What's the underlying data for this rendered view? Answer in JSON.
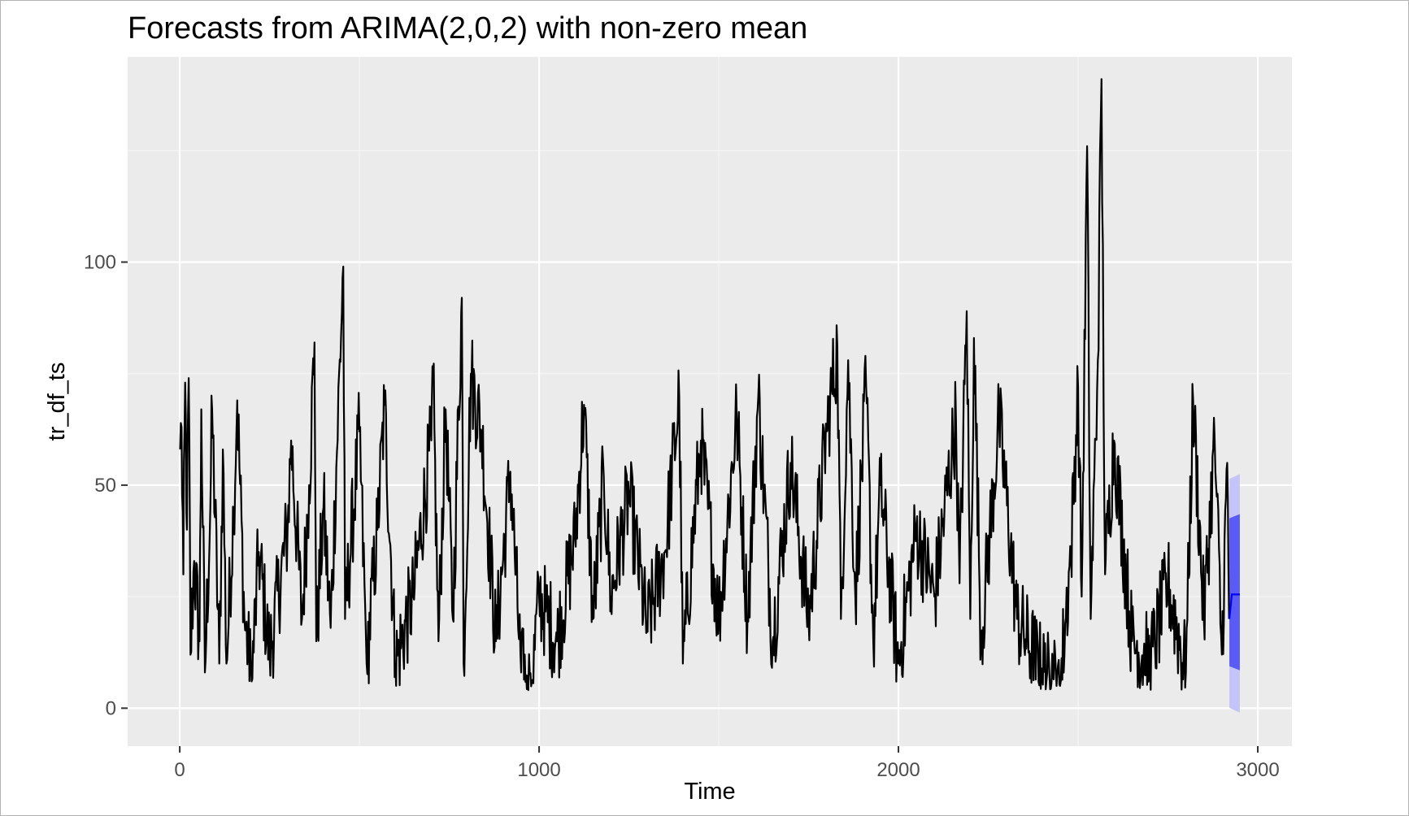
{
  "chart_data": {
    "type": "line",
    "title": "Forecasts from ARIMA(2,0,2) with non-zero mean",
    "xlabel": "Time",
    "ylabel": "tr_df_ts",
    "xlim": [
      -145,
      3095
    ],
    "ylim": [
      -8.5,
      146
    ],
    "x_ticks": [
      0,
      1000,
      2000,
      3000
    ],
    "x_tick_labels": [
      "0",
      "1000",
      "2000",
      "3000"
    ],
    "y_ticks": [
      0,
      50,
      100
    ],
    "y_tick_labels": [
      "0",
      "50",
      "100"
    ],
    "grid": true,
    "legend": "none",
    "series": [
      {
        "values_note_free": true,
        "x_start": 1,
        "x_end": 2920,
        "color": "#000000",
        "anchors": [
          [
            1,
            58
          ],
          [
            5,
            63
          ],
          [
            10,
            30
          ],
          [
            15,
            73
          ],
          [
            20,
            40
          ],
          [
            25,
            74
          ],
          [
            30,
            12
          ],
          [
            40,
            33
          ],
          [
            55,
            15
          ],
          [
            60,
            67
          ],
          [
            70,
            8
          ],
          [
            85,
            45
          ],
          [
            90,
            67
          ],
          [
            110,
            10
          ],
          [
            120,
            58
          ],
          [
            130,
            10
          ],
          [
            150,
            45
          ],
          [
            160,
            69
          ],
          [
            180,
            20
          ],
          [
            200,
            6
          ],
          [
            220,
            35
          ],
          [
            250,
            12
          ],
          [
            300,
            40
          ],
          [
            310,
            60
          ],
          [
            340,
            20
          ],
          [
            360,
            50
          ],
          [
            375,
            82
          ],
          [
            380,
            15
          ],
          [
            400,
            45
          ],
          [
            420,
            18
          ],
          [
            455,
            99
          ],
          [
            460,
            20
          ],
          [
            500,
            62
          ],
          [
            520,
            10
          ],
          [
            550,
            40
          ],
          [
            570,
            68
          ],
          [
            600,
            10
          ],
          [
            650,
            25
          ],
          [
            700,
            60
          ],
          [
            705,
            74
          ],
          [
            720,
            15
          ],
          [
            740,
            67
          ],
          [
            760,
            20
          ],
          [
            785,
            92
          ],
          [
            790,
            10
          ],
          [
            810,
            75
          ],
          [
            840,
            62
          ],
          [
            880,
            15
          ],
          [
            920,
            53
          ],
          [
            950,
            8
          ],
          [
            980,
            6
          ],
          [
            1000,
            25
          ],
          [
            1050,
            15
          ],
          [
            1100,
            38
          ],
          [
            1125,
            68
          ],
          [
            1150,
            20
          ],
          [
            1180,
            52
          ],
          [
            1200,
            25
          ],
          [
            1250,
            48
          ],
          [
            1300,
            18
          ],
          [
            1350,
            35
          ],
          [
            1390,
            70
          ],
          [
            1400,
            10
          ],
          [
            1450,
            60
          ],
          [
            1500,
            20
          ],
          [
            1550,
            66
          ],
          [
            1580,
            20
          ],
          [
            1610,
            70
          ],
          [
            1650,
            15
          ],
          [
            1700,
            55
          ],
          [
            1750,
            20
          ],
          [
            1800,
            62
          ],
          [
            1830,
            81
          ],
          [
            1840,
            20
          ],
          [
            1860,
            78
          ],
          [
            1880,
            25
          ],
          [
            1910,
            72
          ],
          [
            1930,
            15
          ],
          [
            1950,
            50
          ],
          [
            2000,
            10
          ],
          [
            2050,
            40
          ],
          [
            2100,
            25
          ],
          [
            2160,
            65
          ],
          [
            2170,
            28
          ],
          [
            2190,
            89
          ],
          [
            2200,
            20
          ],
          [
            2210,
            83
          ],
          [
            2230,
            15
          ],
          [
            2280,
            65
          ],
          [
            2330,
            20
          ],
          [
            2400,
            8
          ],
          [
            2450,
            5
          ],
          [
            2480,
            35
          ],
          [
            2500,
            72
          ],
          [
            2510,
            25
          ],
          [
            2525,
            126
          ],
          [
            2535,
            20
          ],
          [
            2555,
            78
          ],
          [
            2565,
            141
          ],
          [
            2575,
            30
          ],
          [
            2600,
            60
          ],
          [
            2650,
            15
          ],
          [
            2700,
            10
          ],
          [
            2750,
            28
          ],
          [
            2800,
            8
          ],
          [
            2820,
            69
          ],
          [
            2850,
            20
          ],
          [
            2880,
            60
          ],
          [
            2900,
            12
          ],
          [
            2915,
            55
          ],
          [
            2920,
            20
          ]
        ]
      },
      {
        "name": "",
        "color": "#0000ff",
        "x": [
          2921,
          2950
        ],
        "point_forecast": 25.5,
        "interval_80": [
          8.5,
          43.5
        ],
        "interval_95": [
          -1,
          52.5
        ],
        "fill_80": "#5a5af5",
        "fill_95": "#c4c4f8"
      }
    ],
    "colors": {
      "panel_background": "#ebebeb",
      "grid_major": "#ffffff",
      "grid_minor": "#f5f5f5",
      "tick": "#333333",
      "line": "#000000"
    }
  }
}
